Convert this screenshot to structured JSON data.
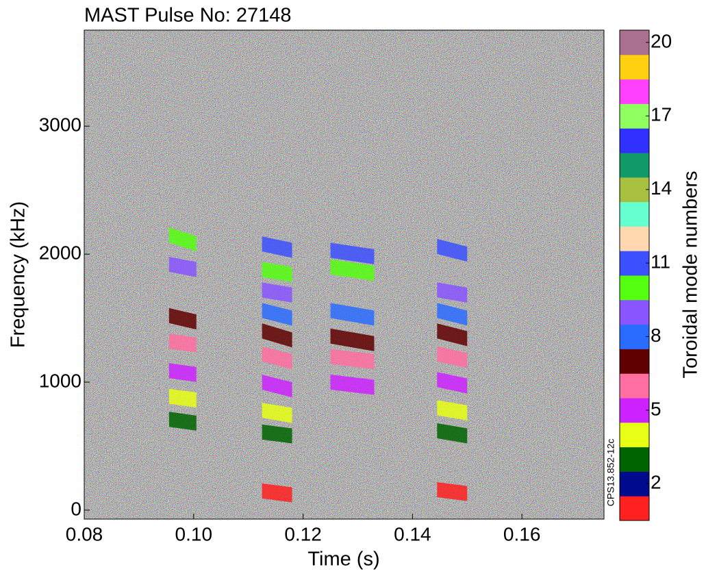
{
  "chart_data": {
    "type": "spectrogram",
    "title": "MAST Pulse No: 27148",
    "x_label": "Time (s)",
    "y_label": "Frequency (kHz)",
    "colorbar_label": "Toroidal mode numbers",
    "annotation": "CPS13.852-12c",
    "xlim": [
      0.08,
      0.175
    ],
    "ylim": [
      -70,
      3750
    ],
    "xticks": [
      {
        "value": 0.08,
        "label": "0.08"
      },
      {
        "value": 0.1,
        "label": "0.10"
      },
      {
        "value": 0.12,
        "label": "0.12"
      },
      {
        "value": 0.14,
        "label": "0.14"
      },
      {
        "value": 0.16,
        "label": "0.16"
      }
    ],
    "yticks": [
      0,
      1000,
      2000,
      3000
    ],
    "modes": [
      1,
      2,
      3,
      4,
      5,
      6,
      7,
      8,
      9,
      10,
      11,
      12,
      13,
      14,
      15,
      16,
      17,
      18,
      19,
      20
    ],
    "colors": [
      "#ff2020",
      "#000a8c",
      "#006400",
      "#e6ff14",
      "#cc22ff",
      "#ff6ea0",
      "#600000",
      "#2a6cff",
      "#8855ff",
      "#55ff10",
      "#3c50ff",
      "#ffd8b0",
      "#66ffd0",
      "#a8c040",
      "#109a6a",
      "#3030ff",
      "#90ff60",
      "#ff40ff",
      "#ffd010",
      "#aa7090"
    ],
    "colorbar_ticks": [
      2,
      5,
      8,
      11,
      14,
      17,
      20
    ],
    "segments": [
      {
        "mode": 7,
        "t": [
          0.0955,
          0.1005
        ],
        "f": [
          1520,
          1470
        ]
      },
      {
        "mode": 6,
        "t": [
          0.0955,
          0.1005
        ],
        "f": [
          1320,
          1290
        ]
      },
      {
        "mode": 5,
        "t": [
          0.0955,
          0.1005
        ],
        "f": [
          1090,
          1060
        ]
      },
      {
        "mode": 4,
        "t": [
          0.0955,
          0.1005
        ],
        "f": [
          890,
          860
        ]
      },
      {
        "mode": 3,
        "t": [
          0.0955,
          0.1005
        ],
        "f": [
          710,
          680
        ]
      },
      {
        "mode": 9,
        "t": [
          0.0955,
          0.1005
        ],
        "f": [
          1920,
          1880
        ]
      },
      {
        "mode": 10,
        "t": [
          0.0955,
          0.1005
        ],
        "f": [
          2150,
          2080
        ]
      },
      {
        "mode": 8,
        "t": [
          0.1125,
          0.118
        ],
        "f": [
          1560,
          1500
        ]
      },
      {
        "mode": 7,
        "t": [
          0.1125,
          0.118
        ],
        "f": [
          1400,
          1330
        ]
      },
      {
        "mode": 6,
        "t": [
          0.1125,
          0.118
        ],
        "f": [
          1220,
          1160
        ]
      },
      {
        "mode": 5,
        "t": [
          0.1125,
          0.118
        ],
        "f": [
          1000,
          940
        ]
      },
      {
        "mode": 4,
        "t": [
          0.1125,
          0.118
        ],
        "f": [
          780,
          740
        ]
      },
      {
        "mode": 3,
        "t": [
          0.1125,
          0.118
        ],
        "f": [
          610,
          580
        ]
      },
      {
        "mode": 9,
        "t": [
          0.1125,
          0.118
        ],
        "f": [
          1720,
          1680
        ]
      },
      {
        "mode": 10,
        "t": [
          0.1125,
          0.118
        ],
        "f": [
          1880,
          1840
        ]
      },
      {
        "mode": 11,
        "t": [
          0.1125,
          0.118
        ],
        "f": [
          2080,
          2030
        ]
      },
      {
        "mode": 1,
        "t": [
          0.1125,
          0.118
        ],
        "f": [
          150,
          120
        ]
      },
      {
        "mode": 8,
        "t": [
          0.125,
          0.133
        ],
        "f": [
          1560,
          1500
        ]
      },
      {
        "mode": 7,
        "t": [
          0.125,
          0.133
        ],
        "f": [
          1360,
          1300
        ]
      },
      {
        "mode": 6,
        "t": [
          0.125,
          0.133
        ],
        "f": [
          1200,
          1160
        ]
      },
      {
        "mode": 5,
        "t": [
          0.125,
          0.133
        ],
        "f": [
          1000,
          960
        ]
      },
      {
        "mode": 10,
        "t": [
          0.125,
          0.133
        ],
        "f": [
          1900,
          1850
        ]
      },
      {
        "mode": 11,
        "t": [
          0.125,
          0.133
        ],
        "f": [
          2030,
          1980
        ]
      },
      {
        "mode": 8,
        "t": [
          0.1445,
          0.15
        ],
        "f": [
          1560,
          1500
        ]
      },
      {
        "mode": 7,
        "t": [
          0.1445,
          0.15
        ],
        "f": [
          1400,
          1340
        ]
      },
      {
        "mode": 6,
        "t": [
          0.1445,
          0.15
        ],
        "f": [
          1220,
          1170
        ]
      },
      {
        "mode": 5,
        "t": [
          0.1445,
          0.15
        ],
        "f": [
          1020,
          970
        ]
      },
      {
        "mode": 4,
        "t": [
          0.1445,
          0.15
        ],
        "f": [
          800,
          760
        ]
      },
      {
        "mode": 3,
        "t": [
          0.1445,
          0.15
        ],
        "f": [
          620,
          580
        ]
      },
      {
        "mode": 9,
        "t": [
          0.1445,
          0.15
        ],
        "f": [
          1720,
          1680
        ]
      },
      {
        "mode": 11,
        "t": [
          0.1445,
          0.15
        ],
        "f": [
          2060,
          2000
        ]
      },
      {
        "mode": 1,
        "t": [
          0.1445,
          0.15
        ],
        "f": [
          160,
          130
        ]
      }
    ]
  }
}
